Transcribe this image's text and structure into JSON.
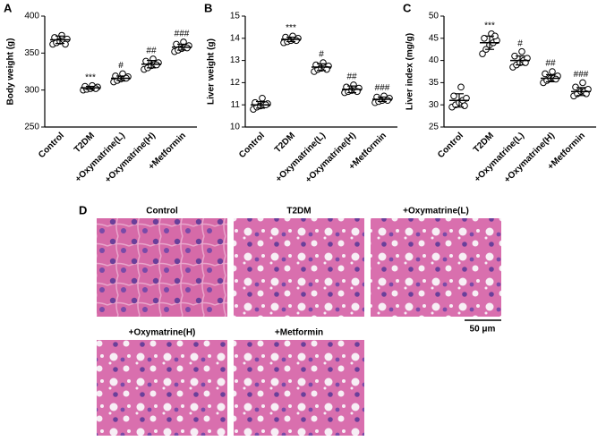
{
  "chart_data": [
    {
      "type": "strip",
      "panel": "A",
      "ylabel": "Body weight (g)",
      "categories": [
        "Control",
        "T2DM",
        "+Oxymatrine(L)",
        "+Oxymatrine(H)",
        "+Metformin"
      ],
      "values": [
        [
          362,
          364,
          366,
          368,
          369,
          371,
          374,
          362
        ],
        [
          300,
          301,
          302,
          303,
          304,
          305,
          306,
          302
        ],
        [
          311,
          313,
          315,
          316,
          318,
          319,
          322,
          316
        ],
        [
          328,
          330,
          333,
          335,
          337,
          339,
          342,
          334
        ],
        [
          352,
          354,
          356,
          358,
          360,
          362,
          365,
          357
        ]
      ],
      "means": [
        368,
        303,
        316,
        335,
        358
      ],
      "sds": [
        5,
        2,
        3,
        5,
        4
      ],
      "annotations": [
        null,
        "***",
        "#",
        "##",
        "###"
      ],
      "ylim": [
        250,
        400
      ],
      "yticks": [
        250,
        300,
        350,
        400
      ],
      "color": "#000000"
    },
    {
      "type": "strip",
      "panel": "B",
      "ylabel": "Liver weight (g)",
      "categories": [
        "Control",
        "T2DM",
        "+Oxymatrine(L)",
        "+Oxymatrine(H)",
        "+Metformin"
      ],
      "values": [
        [
          10.8,
          10.9,
          10.95,
          11.0,
          11.05,
          11.1,
          11.3,
          11.0
        ],
        [
          13.8,
          13.85,
          13.9,
          13.95,
          14.0,
          14.05,
          14.1,
          13.9
        ],
        [
          12.5,
          12.6,
          12.65,
          12.7,
          12.75,
          12.8,
          12.9,
          12.6
        ],
        [
          11.55,
          11.6,
          11.65,
          11.7,
          11.75,
          11.8,
          11.9,
          11.6
        ],
        [
          11.1,
          11.15,
          11.2,
          11.25,
          11.3,
          11.35,
          11.4,
          11.2
        ]
      ],
      "means": [
        11.0,
        13.95,
        12.7,
        11.7,
        11.25
      ],
      "sds": [
        0.15,
        0.1,
        0.15,
        0.15,
        0.1
      ],
      "annotations": [
        null,
        "***",
        "#",
        "##",
        "###"
      ],
      "ylim": [
        10,
        15
      ],
      "yticks": [
        10,
        11,
        12,
        13,
        14,
        15
      ],
      "color": "#000000"
    },
    {
      "type": "strip",
      "panel": "C",
      "ylabel": "Liver index (mg/g)",
      "categories": [
        "Control",
        "T2DM",
        "+Oxymatrine(L)",
        "+Oxymatrine(H)",
        "+Metformin"
      ],
      "values": [
        [
          29.5,
          30,
          30.5,
          31,
          31.5,
          32,
          34,
          29.8
        ],
        [
          41.5,
          42.5,
          43.5,
          44,
          44.5,
          45,
          46,
          45.5
        ],
        [
          38.5,
          39,
          39.5,
          40,
          40.5,
          41,
          42,
          39.5
        ],
        [
          35,
          35.5,
          36,
          36,
          36.5,
          37,
          37.5,
          35.8
        ],
        [
          32,
          32.5,
          33,
          33,
          33.5,
          34,
          35,
          32.5
        ]
      ],
      "means": [
        31,
        44,
        40,
        36,
        33
      ],
      "sds": [
        1.5,
        1.5,
        1,
        0.8,
        0.9
      ],
      "annotations": [
        null,
        "***",
        "#",
        "##",
        "###"
      ],
      "ylim": [
        25,
        50
      ],
      "yticks": [
        25,
        30,
        35,
        40,
        45,
        50
      ],
      "color": "#000000"
    }
  ],
  "panel_d": {
    "label": "D",
    "images": [
      {
        "title": "Control"
      },
      {
        "title": "T2DM"
      },
      {
        "title": "+Oxymatrine(L)"
      },
      {
        "title": "+Oxymatrine(H)"
      },
      {
        "title": "+Metformin"
      }
    ],
    "scale_bar": "50 μm"
  }
}
